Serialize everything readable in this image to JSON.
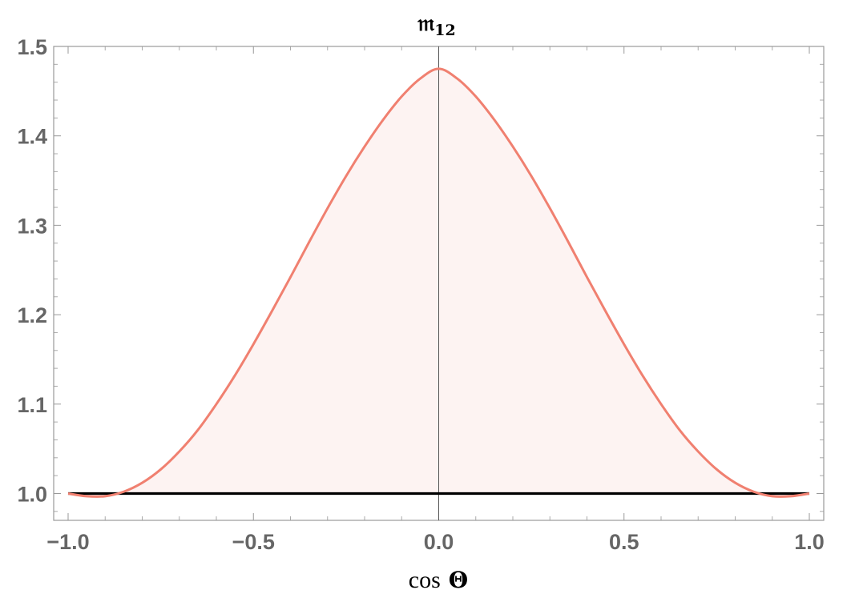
{
  "chart_data": {
    "type": "area",
    "title_main": "𝔪",
    "title_sub": "12",
    "xlabel_func": "cos",
    "xlabel_var": "Θ",
    "xlim": [
      -1.0,
      1.0
    ],
    "ylim": [
      0.97,
      1.5
    ],
    "x_ticks": [
      -1.0,
      -0.5,
      0.0,
      0.5,
      1.0
    ],
    "x_tick_labels": [
      "−1.0",
      "−0.5",
      "0.0",
      "0.5",
      "1.0"
    ],
    "y_ticks": [
      1.0,
      1.1,
      1.2,
      1.3,
      1.4,
      1.5
    ],
    "y_tick_labels": [
      "1.0",
      "1.1",
      "1.2",
      "1.3",
      "1.4",
      "1.5"
    ],
    "frame": true,
    "grid": false,
    "series": [
      {
        "x": [
          -1.0,
          -0.95,
          -0.9,
          -0.85,
          -0.8,
          -0.75,
          -0.7,
          -0.65,
          -0.6,
          -0.55,
          -0.5,
          -0.45,
          -0.4,
          -0.35,
          -0.3,
          -0.25,
          -0.2,
          -0.15,
          -0.1,
          -0.05,
          0.0,
          0.05,
          0.1,
          0.15,
          0.2,
          0.25,
          0.3,
          0.35,
          0.4,
          0.45,
          0.5,
          0.55,
          0.6,
          0.65,
          0.7,
          0.75,
          0.8,
          0.85,
          0.9,
          0.95,
          1.0
        ],
        "y": [
          1.0,
          0.997,
          0.997,
          1.002,
          1.012,
          1.027,
          1.047,
          1.071,
          1.1,
          1.132,
          1.167,
          1.204,
          1.242,
          1.281,
          1.319,
          1.355,
          1.388,
          1.418,
          1.444,
          1.464,
          1.475,
          1.464,
          1.444,
          1.418,
          1.388,
          1.355,
          1.319,
          1.281,
          1.242,
          1.204,
          1.167,
          1.132,
          1.1,
          1.071,
          1.047,
          1.027,
          1.012,
          1.002,
          0.997,
          0.997,
          1.0
        ],
        "color": "#f08070",
        "fill": "#fdf3f2"
      },
      {
        "x": [
          -1.0,
          1.0
        ],
        "y": [
          1.0,
          1.0
        ],
        "color": "#000000"
      }
    ],
    "vertical_rule_x": 0.0
  }
}
